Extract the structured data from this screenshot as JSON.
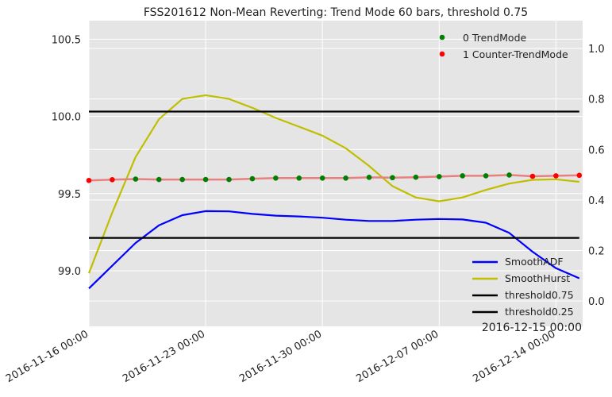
{
  "chart_data": {
    "type": "line",
    "title": "FSS201612 Non-Mean Reverting: Trend Mode 60 bars, threshold 0.75",
    "corner_label": "2016-12-15 00:00",
    "x": {
      "ticks": [
        {
          "day": 0,
          "label": "2016-11-16 00:00"
        },
        {
          "day": 7,
          "label": "2016-11-23 00:00"
        },
        {
          "day": 14,
          "label": "2016-11-30 00:00"
        },
        {
          "day": 21,
          "label": "2016-12-07 00:00"
        },
        {
          "day": 28,
          "label": "2016-12-14 00:00"
        }
      ],
      "range_days": [
        0,
        29.6
      ]
    },
    "y_left": {
      "range": [
        98.64,
        100.62
      ],
      "ticks": [
        {
          "v": 99.0,
          "label": "99.0"
        },
        {
          "v": 99.5,
          "label": "99.5"
        },
        {
          "v": 100.0,
          "label": "100.0"
        },
        {
          "v": 100.5,
          "label": "100.5"
        }
      ]
    },
    "y_right": {
      "range": [
        -0.1,
        1.11
      ],
      "ticks": [
        {
          "v": 0.0,
          "label": "0.0"
        },
        {
          "v": 0.2,
          "label": "0.2"
        },
        {
          "v": 0.4,
          "label": "0.4"
        },
        {
          "v": 0.6,
          "label": "0.6"
        },
        {
          "v": 0.8,
          "label": "0.8"
        },
        {
          "v": 1.0,
          "label": "1.0"
        }
      ]
    },
    "price": {
      "days": [
        0,
        1.4,
        2.8,
        4.2,
        5.6,
        7,
        8.4,
        9.8,
        11.2,
        12.6,
        14,
        15.4,
        16.8,
        18.2,
        19.6,
        21,
        22.4,
        23.8,
        25.2,
        26.6,
        28,
        29.4
      ],
      "values": [
        99.585,
        99.59,
        99.594,
        99.591,
        99.591,
        99.591,
        99.591,
        99.596,
        99.6,
        99.6,
        99.6,
        99.6,
        99.605,
        99.603,
        99.606,
        99.61,
        99.615,
        99.615,
        99.62,
        99.612,
        99.615,
        99.618
      ],
      "modes": [
        1,
        1,
        0,
        0,
        0,
        0,
        0,
        0,
        0,
        0,
        0,
        0,
        0,
        0,
        0,
        0,
        0,
        0,
        0,
        1,
        1,
        1
      ],
      "line_color": "#e88080"
    },
    "series": [
      {
        "name": "SmoothADF",
        "color": "#0000ff",
        "axis": "right",
        "days": [
          0,
          1.4,
          2.8,
          4.2,
          5.6,
          7,
          8.4,
          9.8,
          11.2,
          12.6,
          14,
          15.4,
          16.8,
          18.2,
          19.6,
          21,
          22.4,
          23.8,
          25.2,
          26.6,
          28,
          29.4
        ],
        "values": [
          0.05,
          0.14,
          0.23,
          0.3,
          0.34,
          0.356,
          0.355,
          0.345,
          0.338,
          0.335,
          0.33,
          0.322,
          0.317,
          0.317,
          0.322,
          0.325,
          0.323,
          0.31,
          0.27,
          0.195,
          0.13,
          0.09
        ]
      },
      {
        "name": "SmoothHurst",
        "color": "#bfbf00",
        "axis": "right",
        "days": [
          0,
          1.4,
          2.8,
          4.2,
          5.6,
          7,
          8.4,
          9.8,
          11.2,
          12.6,
          14,
          15.4,
          16.8,
          18.2,
          19.6,
          21,
          22.4,
          23.8,
          25.2,
          26.6,
          28,
          29.4
        ],
        "values": [
          0.11,
          0.35,
          0.57,
          0.72,
          0.8,
          0.815,
          0.8,
          0.765,
          0.725,
          0.69,
          0.655,
          0.605,
          0.535,
          0.455,
          0.41,
          0.395,
          0.41,
          0.44,
          0.465,
          0.48,
          0.482,
          0.472
        ]
      },
      {
        "name": "threshold0.75",
        "color": "#000000",
        "axis": "right",
        "days": [
          0,
          29.4
        ],
        "values": [
          0.75,
          0.75
        ]
      },
      {
        "name": "threshold0.25",
        "color": "#000000",
        "axis": "right",
        "days": [
          0,
          29.4
        ],
        "values": [
          0.25,
          0.25
        ]
      }
    ],
    "legend_top": [
      {
        "label": "0 TrendMode",
        "color": "#008000"
      },
      {
        "label": "1 Counter-TrendMode",
        "color": "#ff0000"
      }
    ],
    "legend_bottom": [
      "SmoothADF",
      "SmoothHurst",
      "threshold0.75",
      "threshold0.25"
    ],
    "grid": true
  }
}
